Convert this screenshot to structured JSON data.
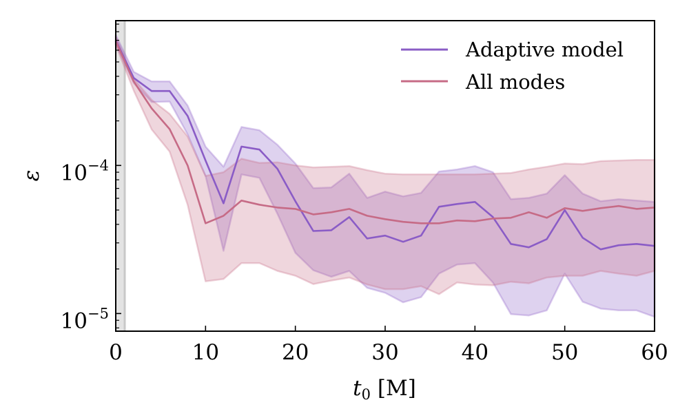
{
  "chart_data": {
    "type": "line",
    "title": "",
    "xlabel": "t_0 [M]",
    "xlabel_main": "t",
    "xlabel_sub": "0",
    "xlabel_unit": " [M]",
    "ylabel": "ε",
    "xscale": "linear",
    "yscale": "log",
    "xlim": [
      0,
      60
    ],
    "ylim": [
      7.6e-06,
      0.00095
    ],
    "grid": false,
    "legend_position": "top-right",
    "x_ticks": [
      0,
      10,
      20,
      30,
      40,
      50,
      60
    ],
    "x_tick_labels": [
      "0",
      "10",
      "20",
      "30",
      "40",
      "50",
      "60"
    ],
    "y_ticks": [
      0.0001,
      1e-05
    ],
    "y_tick_labels": [
      {
        "base": "10",
        "exp": "−4"
      },
      {
        "base": "10",
        "exp": "−5"
      }
    ],
    "shaded_region": {
      "x_start": 0,
      "x_end": 1,
      "color": "#e3e3e3",
      "edge_color": "#c8c8c8"
    },
    "x": [
      0,
      2,
      4,
      6,
      8,
      10,
      12,
      14,
      16,
      18,
      20,
      22,
      24,
      26,
      28,
      30,
      32,
      34,
      36,
      38,
      40,
      42,
      44,
      46,
      48,
      50,
      52,
      54,
      56,
      58,
      60
    ],
    "series": [
      {
        "name": "Adaptive model",
        "color": "#8a5cc6",
        "values": [
          0.0007,
          0.00039,
          0.000318,
          0.000318,
          0.000216,
          0.000108,
          5.55e-05,
          0.000134,
          0.000128,
          9.5e-05,
          5.73e-05,
          3.61e-05,
          3.65e-05,
          4.48e-05,
          3.21e-05,
          3.36e-05,
          3.05e-05,
          3.36e-05,
          5.26e-05,
          5.49e-05,
          5.67e-05,
          4.48e-05,
          2.95e-05,
          2.8e-05,
          3.18e-05,
          4.99e-05,
          3.25e-05,
          2.71e-05,
          2.89e-05,
          2.95e-05,
          2.86e-05
        ],
        "upper": [
          0.00076,
          0.000429,
          0.000369,
          0.000369,
          0.000254,
          0.000134,
          9.8e-05,
          0.000182,
          0.000173,
          0.000138,
          0.000103,
          7.03e-05,
          7.1e-05,
          8.8e-05,
          6.04e-05,
          6.66e-05,
          6.18e-05,
          6.52e-05,
          9.1e-05,
          9.4e-05,
          9.9e-05,
          9e-05,
          5.92e-05,
          6.04e-05,
          6.45e-05,
          8.6e-05,
          6.45e-05,
          5.73e-05,
          5.92e-05,
          5.79e-05,
          5.67e-05
        ],
        "lower": [
          0.00066,
          0.00036,
          0.000268,
          0.00027,
          0.000162,
          8.5e-05,
          2.65e-05,
          8.7e-05,
          8.25e-05,
          4.72e-05,
          2.57e-05,
          1.96e-05,
          1.77e-05,
          1.94e-05,
          1.49e-05,
          1.38e-05,
          1.19e-05,
          1.29e-05,
          1.86e-05,
          2.14e-05,
          2.19e-05,
          1.62e-05,
          9.9e-06,
          9.7e-06,
          1.05e-05,
          1.86e-05,
          1.2e-05,
          1.08e-05,
          1.05e-05,
          1.05e-05,
          9.5e-06
        ]
      },
      {
        "name": "All modes",
        "color": "#c66b86",
        "values": [
          0.00069,
          0.000369,
          0.000243,
          0.000176,
          0.0001,
          4.07e-05,
          4.57e-05,
          5.79e-05,
          5.43e-05,
          5.2e-05,
          5.09e-05,
          4.67e-05,
          4.83e-05,
          5.09e-05,
          4.57e-05,
          4.34e-05,
          4.16e-05,
          4.07e-05,
          4.07e-05,
          4.25e-05,
          4.2e-05,
          4.38e-05,
          4.43e-05,
          4.83e-05,
          4.43e-05,
          5.15e-05,
          4.93e-05,
          5.15e-05,
          5.32e-05,
          5.09e-05,
          5.2e-05
        ],
        "upper": [
          0.00074,
          0.000385,
          0.000277,
          0.000223,
          0.000157,
          8.5e-05,
          9e-05,
          0.000111,
          0.000104,
          0.000105,
          0.0001,
          9.7e-05,
          9.8e-05,
          9.9e-05,
          9.3e-05,
          8.8e-05,
          8.7e-05,
          8.7e-05,
          8.7e-05,
          8.7e-05,
          8.7e-05,
          8.8e-05,
          8.9e-05,
          9.4e-05,
          9.8e-05,
          0.000103,
          0.000102,
          0.000107,
          0.000108,
          0.000109,
          0.000109
        ],
        "lower": [
          0.00065,
          0.00032,
          0.000175,
          0.000124,
          5.43e-05,
          1.65e-05,
          1.71e-05,
          2.19e-05,
          2.19e-05,
          1.94e-05,
          1.8e-05,
          1.58e-05,
          1.67e-05,
          1.75e-05,
          1.57e-05,
          1.46e-05,
          1.46e-05,
          1.53e-05,
          1.35e-05,
          1.62e-05,
          1.57e-05,
          1.55e-05,
          1.64e-05,
          1.6e-05,
          1.75e-05,
          1.8e-05,
          1.8e-05,
          1.94e-05,
          1.86e-05,
          1.8e-05,
          1.94e-05
        ]
      }
    ],
    "legend": [
      {
        "label": "Adaptive model",
        "color": "#8a5cc6"
      },
      {
        "label": "All modes",
        "color": "#c66b86"
      }
    ]
  }
}
